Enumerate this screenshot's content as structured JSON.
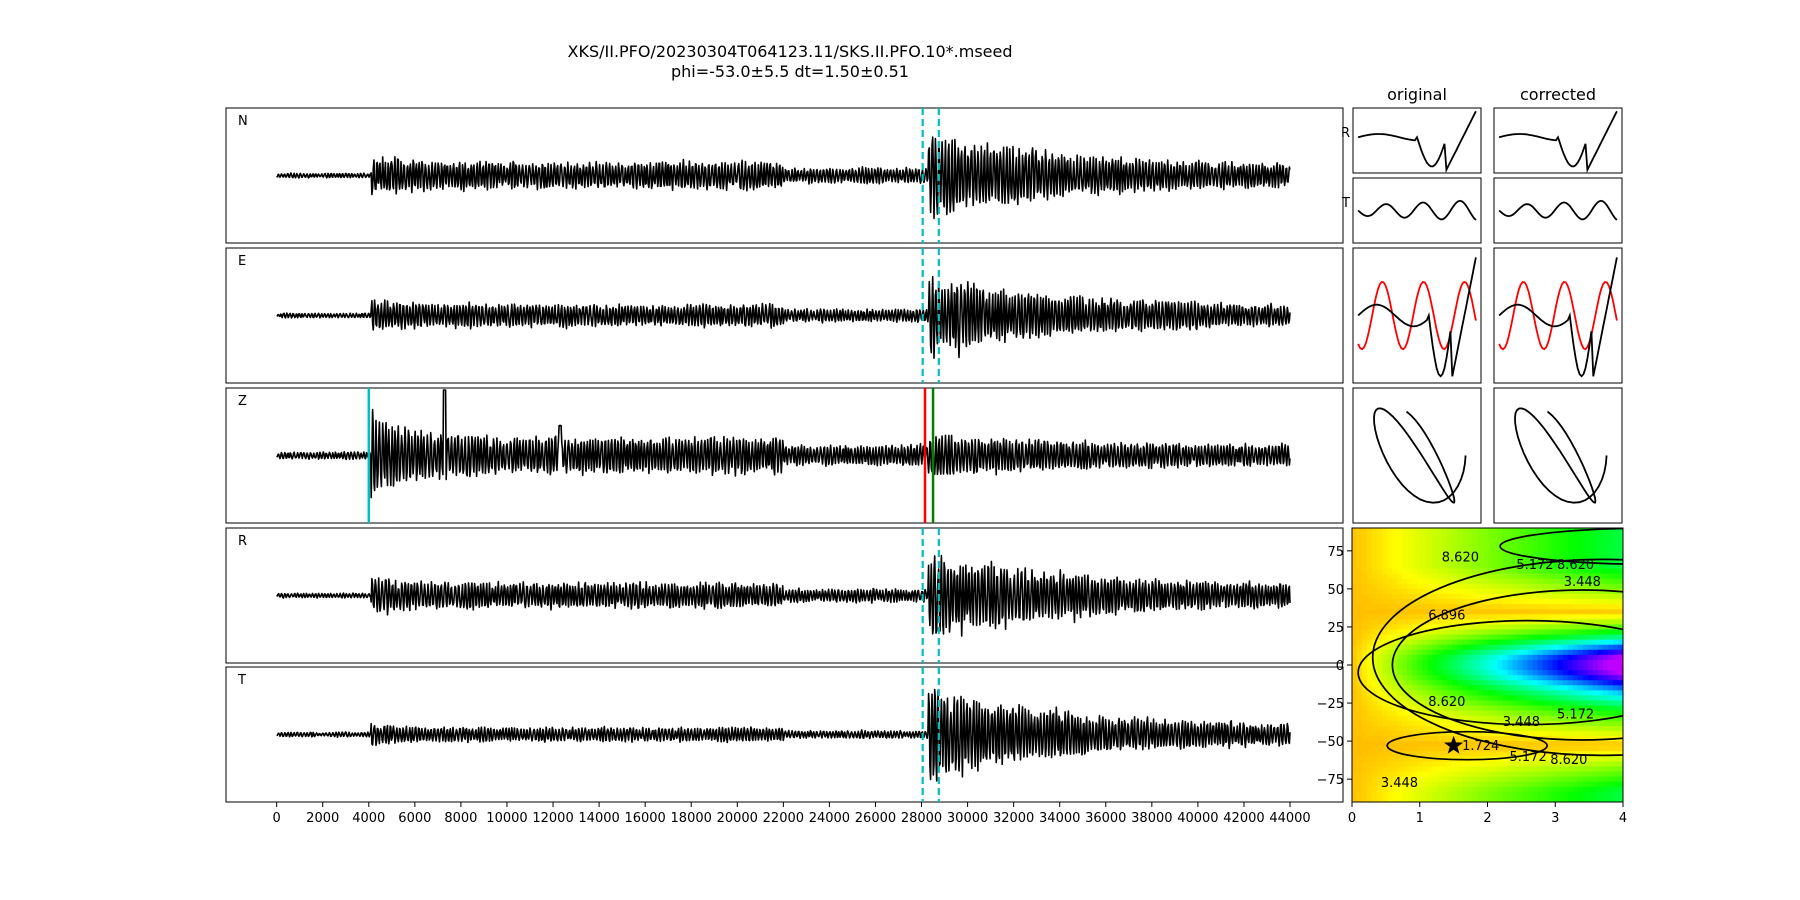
{
  "figure": {
    "title_line1": "XKS/II.PFO/20230304T064123.11/SKS.II.PFO.10*.mseed",
    "title_line2": "phi=-53.0±5.5 dt=1.50±0.51"
  },
  "chart_data": [
    {
      "type": "line",
      "panels": [
        {
          "label": "N"
        },
        {
          "label": "E"
        },
        {
          "label": "Z"
        },
        {
          "label": "R"
        },
        {
          "label": "T"
        }
      ],
      "x_ticks": [
        "0",
        "2000",
        "4000",
        "6000",
        "8000",
        "10000",
        "12000",
        "14000",
        "16000",
        "18000",
        "20000",
        "22000",
        "24000",
        "26000",
        "28000",
        "30000",
        "32000",
        "34000",
        "36000",
        "38000",
        "40000",
        "42000",
        "44000"
      ],
      "xlim": [
        -2200,
        46300
      ],
      "x_range": [
        0,
        44000
      ],
      "window_markers": {
        "color": "#00bfbf",
        "style": "dashed",
        "x": [
          28050,
          28750
        ],
        "panels": [
          "N",
          "E",
          "R",
          "T"
        ]
      },
      "phase_markers": [
        {
          "x": 4000,
          "color": "#00bfbf"
        },
        {
          "x": 28150,
          "color": "#ff0000"
        },
        {
          "x": 28500,
          "color": "#008000"
        }
      ],
      "arrivals": {
        "p_onset": 4100,
        "s_onset": 28300
      }
    },
    {
      "type": "line",
      "columns": [
        "original",
        "corrected"
      ],
      "rows": [
        "R",
        "T"
      ],
      "particle_colors": {
        "radial": "#000000",
        "transverse": "#ff0000"
      }
    },
    {
      "type": "heatmap",
      "x_ticks": [
        "0",
        "1",
        "2",
        "3",
        "4"
      ],
      "y_ticks": [
        "75",
        "50",
        "25",
        "0",
        "−25",
        "−50",
        "−75"
      ],
      "xlim": [
        0,
        4
      ],
      "ylim": [
        -90,
        90
      ],
      "colormap": "hsv",
      "contour_levels": [
        "1.724",
        "3.448",
        "5.172",
        "6.896",
        "8.620"
      ],
      "best": {
        "dt": 1.5,
        "phi": -53.0
      }
    }
  ]
}
